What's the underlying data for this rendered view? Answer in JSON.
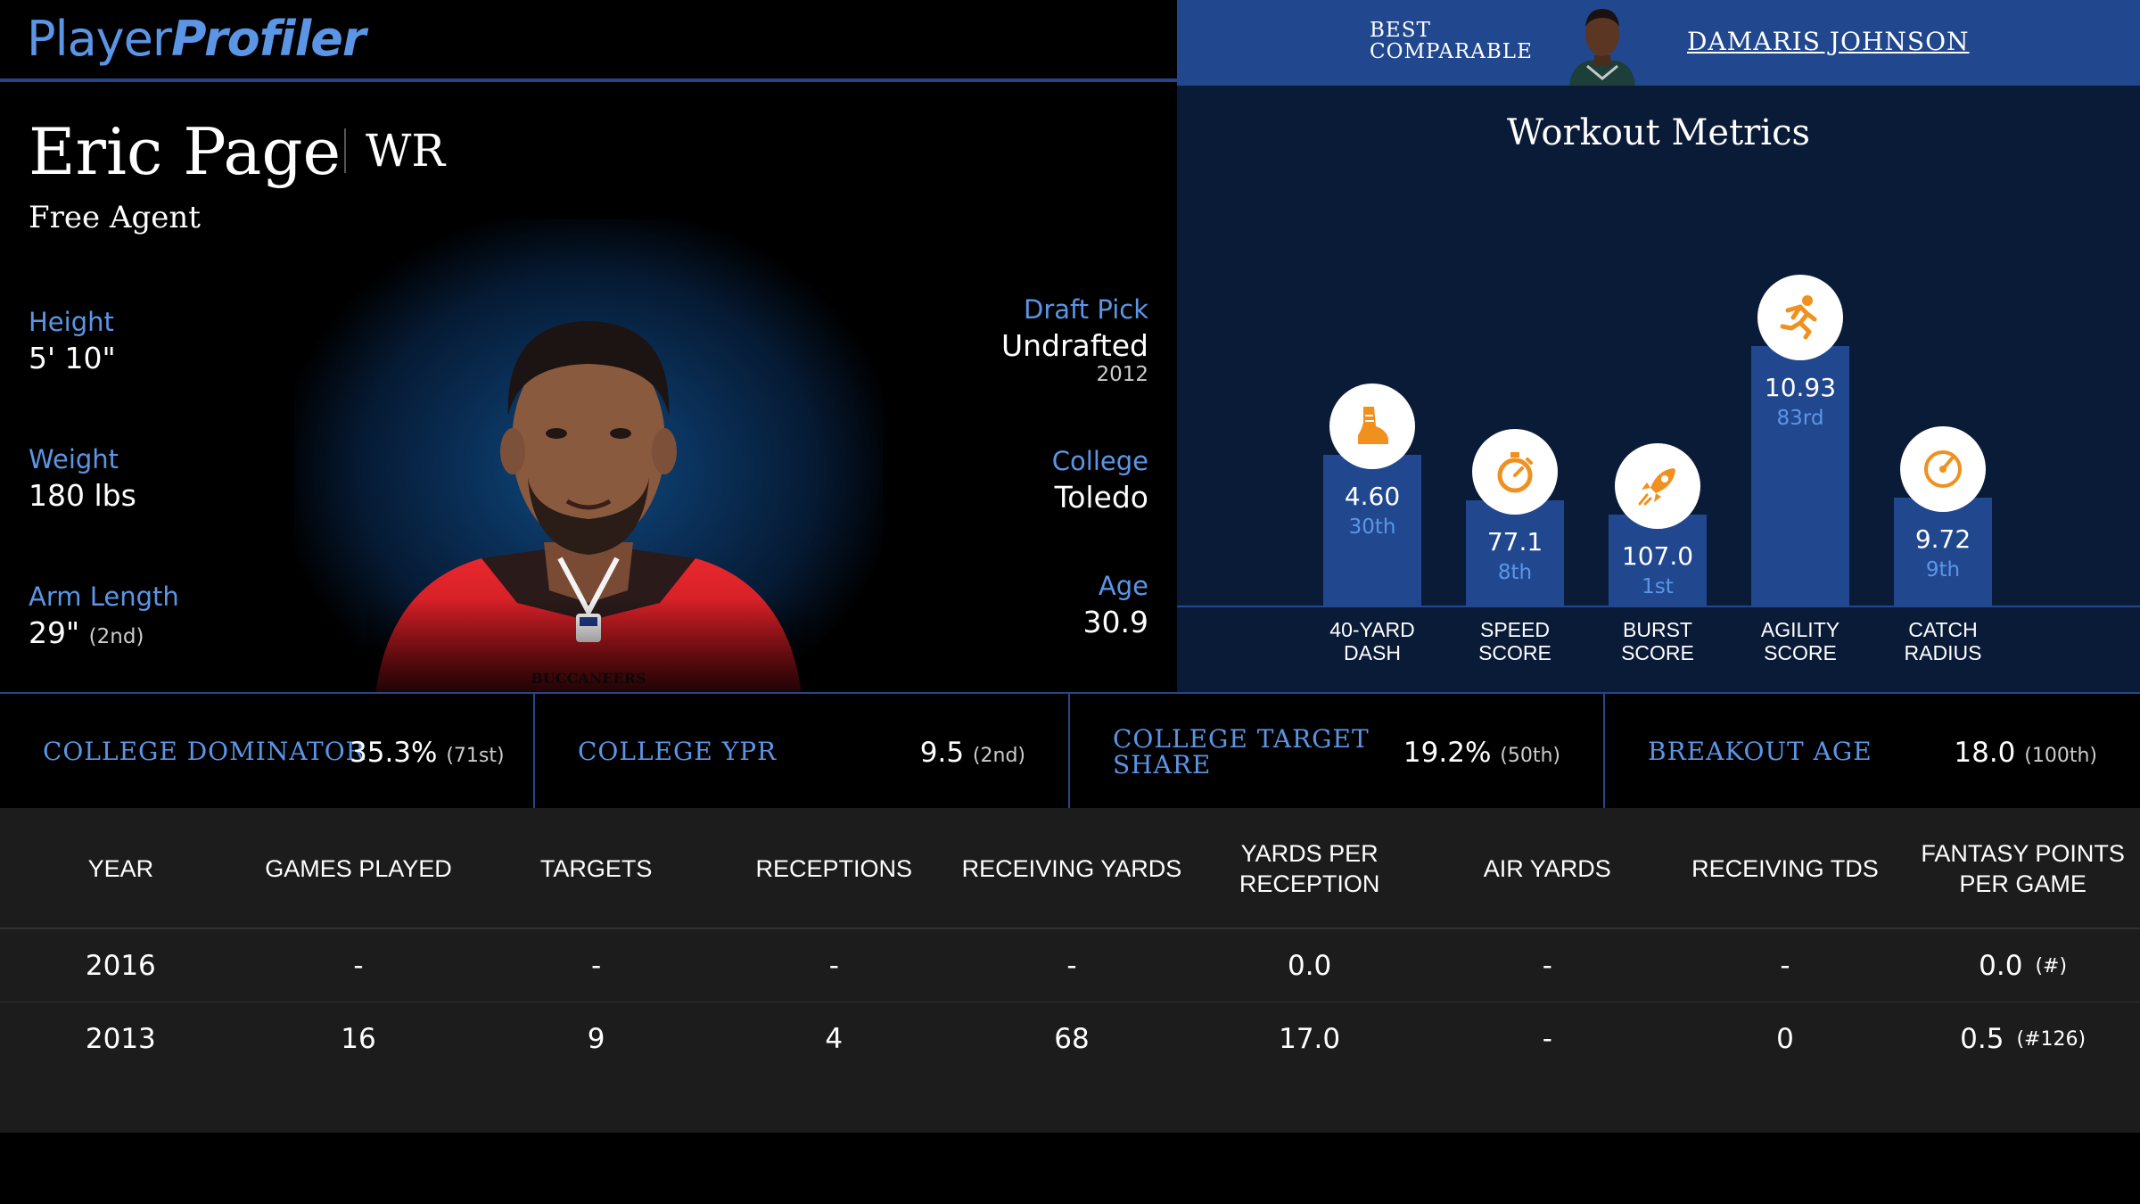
{
  "brand": {
    "logo_light": "Player",
    "logo_bold": "Profiler"
  },
  "comparable": {
    "label": "BEST\nCOMPARABLE",
    "label_line1": "BEST",
    "label_line2": "COMPARABLE",
    "name": "DAMARIS JOHNSON"
  },
  "player": {
    "name": "Eric Page",
    "position": "WR",
    "team": "Free Agent",
    "height": {
      "label": "Height",
      "value": "5' 10\""
    },
    "weight": {
      "label": "Weight",
      "value": "180 lbs"
    },
    "arm_length": {
      "label": "Arm Length",
      "value": "29\"",
      "rank": "(2nd)"
    },
    "draft_pick": {
      "label": "Draft Pick",
      "value": "Undrafted",
      "year": "2012"
    },
    "college": {
      "label": "College",
      "value": "Toledo"
    },
    "age": {
      "label": "Age",
      "value": "30.9"
    }
  },
  "workout": {
    "title": "Workout Metrics",
    "metrics": [
      {
        "name1": "40-YARD",
        "name2": "DASH",
        "value": "4.60",
        "percentile": "30th",
        "level": 30,
        "icon": "running-shoe-icon",
        "color": "#f0901e"
      },
      {
        "name1": "SPEED",
        "name2": "SCORE",
        "value": "77.1",
        "percentile": "8th",
        "level": 8,
        "icon": "stopwatch-icon",
        "color": "#f0901e"
      },
      {
        "name1": "BURST",
        "name2": "SCORE",
        "value": "107.0",
        "percentile": "1st",
        "level": 1,
        "icon": "rocket-icon",
        "color": "#f0901e"
      },
      {
        "name1": "AGILITY",
        "name2": "SCORE",
        "value": "10.93",
        "percentile": "83rd",
        "level": 83,
        "icon": "sprinter-icon",
        "color": "#f0901e"
      },
      {
        "name1": "CATCH",
        "name2": "RADIUS",
        "value": "9.72",
        "percentile": "9th",
        "level": 9,
        "icon": "target-gauge-icon",
        "color": "#f0901e"
      }
    ]
  },
  "college_metrics": [
    {
      "label1": "COLLEGE DOMINATOR",
      "label2": "",
      "value": "35.3%",
      "rank": "(71st)"
    },
    {
      "label1": "COLLEGE YPR",
      "label2": "",
      "value": "9.5",
      "rank": "(2nd)"
    },
    {
      "label1": "COLLEGE TARGET",
      "label2": "SHARE",
      "value": "19.2%",
      "rank": "(50th)"
    },
    {
      "label1": "BREAKOUT AGE",
      "label2": "",
      "value": "18.0",
      "rank": "(100th)"
    }
  ],
  "stats_table": {
    "columns": [
      "YEAR",
      "GAMES PLAYED",
      "TARGETS",
      "RECEPTIONS",
      "RECEIVING YARDS",
      "YARDS PER RECEPTION",
      "AIR YARDS",
      "RECEIVING TDS",
      "FANTASY POINTS PER GAME"
    ],
    "rows": [
      {
        "year": "2016",
        "games": "-",
        "targets": "-",
        "receptions": "-",
        "yards": "-",
        "ypr": "0.0",
        "air": "-",
        "tds": "-",
        "fppg": "0.0",
        "fppg_rank": "(#)"
      },
      {
        "year": "2013",
        "games": "16",
        "targets": "9",
        "receptions": "4",
        "yards": "68",
        "ypr": "17.0",
        "air": "-",
        "tds": "0",
        "fppg": "0.5",
        "fppg_rank": "(#126)"
      }
    ]
  }
}
